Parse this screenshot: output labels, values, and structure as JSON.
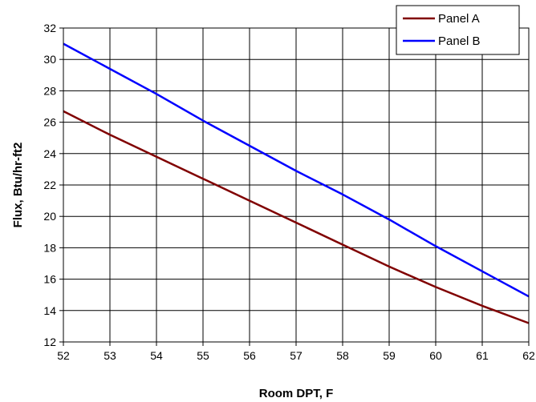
{
  "chart_data": {
    "type": "line",
    "title": "",
    "xlabel": "Room DPT, F",
    "ylabel": "Flux, Btu/hr-ft2",
    "xlim": [
      52,
      62
    ],
    "ylim": [
      12,
      32
    ],
    "x_ticks": [
      "52",
      "53",
      "54",
      "55",
      "56",
      "57",
      "58",
      "59",
      "60",
      "61",
      "62"
    ],
    "y_ticks": [
      "12",
      "14",
      "16",
      "18",
      "20",
      "22",
      "24",
      "26",
      "28",
      "30",
      "32"
    ],
    "grid": true,
    "legend_position": "top-right",
    "x": [
      52,
      53,
      54,
      55,
      56,
      57,
      58,
      59,
      60,
      61,
      62
    ],
    "series": [
      {
        "name": "Panel A",
        "color": "#800000",
        "values": [
          26.7,
          25.2,
          23.8,
          22.4,
          21.0,
          19.6,
          18.2,
          16.8,
          15.5,
          14.3,
          13.2
        ]
      },
      {
        "name": "Panel B",
        "color": "#0000ff",
        "values": [
          31.0,
          29.4,
          27.8,
          26.1,
          24.5,
          22.9,
          21.4,
          19.8,
          18.1,
          16.5,
          14.9
        ]
      }
    ]
  }
}
